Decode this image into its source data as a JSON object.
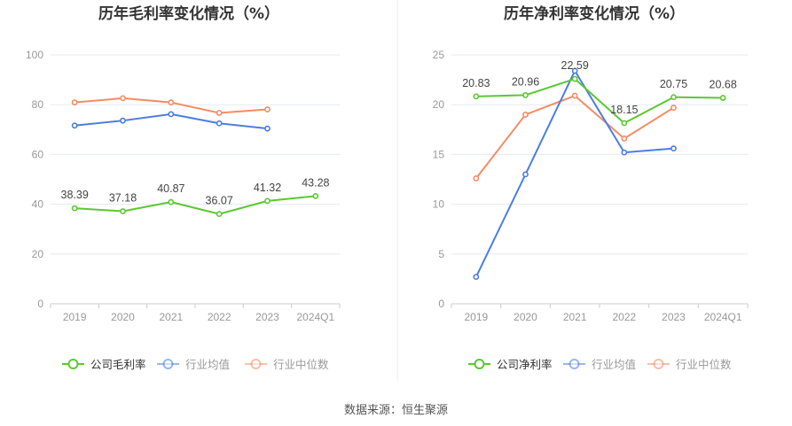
{
  "source_text": "数据来源：恒生聚源",
  "colors": {
    "company": "#5bc832",
    "industry_avg": "#4a7ee0",
    "industry_median": "#f58b64",
    "axis_text": "#999999",
    "grid": "#e6e9f2",
    "title": "#333333",
    "label": "#444444",
    "legend_text": "#555555"
  },
  "chart_data": [
    {
      "type": "line",
      "title": "历年毛利率变化情况（%）",
      "categories": [
        "2019",
        "2020",
        "2021",
        "2022",
        "2023",
        "2024Q1"
      ],
      "ylim": [
        0,
        100
      ],
      "yticks": [
        "0",
        "20",
        "40",
        "60",
        "80",
        "100"
      ],
      "grid": true,
      "legend_position": "bottom",
      "series": [
        {
          "name": "公司毛利率",
          "key": "company",
          "values": [
            38.39,
            37.18,
            40.87,
            36.07,
            41.32,
            43.28
          ],
          "labels": [
            "38.39",
            "37.18",
            "40.87",
            "36.07",
            "41.32",
            "43.28"
          ]
        },
        {
          "name": "行业均值",
          "key": "industry_avg",
          "values": [
            71.6,
            73.6,
            76.2,
            72.5,
            70.4,
            null
          ]
        },
        {
          "name": "行业中位数",
          "key": "industry_median",
          "values": [
            80.9,
            82.6,
            80.9,
            76.7,
            78.1,
            null
          ]
        }
      ]
    },
    {
      "type": "line",
      "title": "历年净利率变化情况（%）",
      "categories": [
        "2019",
        "2020",
        "2021",
        "2022",
        "2023",
        "2024Q1"
      ],
      "ylim": [
        0,
        25
      ],
      "yticks": [
        "0",
        "5",
        "10",
        "15",
        "20",
        "25"
      ],
      "grid": true,
      "legend_position": "bottom",
      "series": [
        {
          "name": "公司净利率",
          "key": "company",
          "values": [
            20.83,
            20.96,
            22.59,
            18.15,
            20.75,
            20.68
          ],
          "labels": [
            "20.83",
            "20.96",
            "22.59",
            "18.15",
            "20.75",
            "20.68"
          ]
        },
        {
          "name": "行业均值",
          "key": "industry_avg",
          "values": [
            2.7,
            13.0,
            23.4,
            15.2,
            15.6,
            null
          ]
        },
        {
          "name": "行业中位数",
          "key": "industry_median",
          "values": [
            12.6,
            19.0,
            20.9,
            16.6,
            19.7,
            null
          ]
        }
      ]
    }
  ]
}
